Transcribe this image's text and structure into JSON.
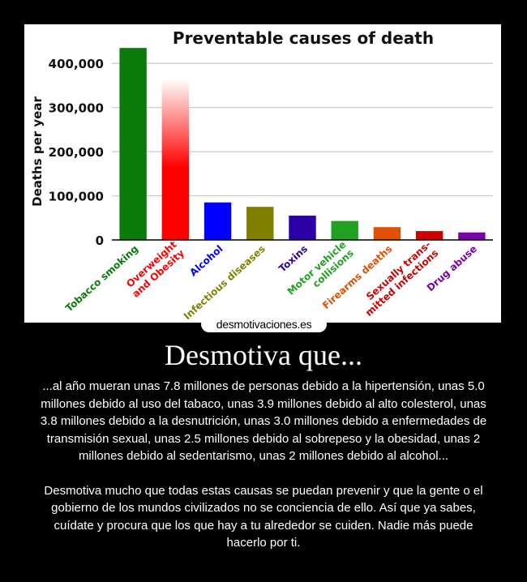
{
  "chart_data": {
    "type": "bar",
    "title": "Preventable causes of death",
    "ylabel": "Deaths per year",
    "xlabel": "",
    "ylim": [
      0,
      450000
    ],
    "yticks": [
      0,
      100000,
      200000,
      300000,
      400000
    ],
    "ytick_labels": [
      "0",
      "100,000",
      "200,000",
      "300,000",
      "400,000"
    ],
    "grid": true,
    "categories": [
      "Tobacco smoking",
      "Overweight and Obesity",
      "Alcohol",
      "Infectious diseases",
      "Toxins",
      "Motor vehicle collisions",
      "Firearms deaths",
      "Sexually transmitted infections",
      "Drug abuse"
    ],
    "category_lines": [
      [
        "Tobacco smoking"
      ],
      [
        "Overweight",
        "and Obesity"
      ],
      [
        "Alcohol"
      ],
      [
        "Infectious diseases"
      ],
      [
        "Toxins"
      ],
      [
        "Motor vehicle",
        "collisions"
      ],
      [
        "Firearms deaths"
      ],
      [
        "Sexually trans-",
        "mitted infections"
      ],
      [
        "Drug abuse"
      ]
    ],
    "values": [
      435000,
      365000,
      85000,
      75000,
      55000,
      43000,
      29000,
      20000,
      17000
    ],
    "colors": [
      "#0a7a0a",
      "#ff0000",
      "#0000ff",
      "#808000",
      "#2a00a6",
      "#22a022",
      "#e05000",
      "#d00000",
      "#7a00aa"
    ]
  },
  "watermark": "desmotivaciones.es",
  "motto": {
    "title": "Desmotiva que...",
    "paragraph1": "...al año mueran unas 7.8 millones de personas debido a la hipertensión, unas 5.0 millones debido al uso del tabaco, unas 3.9 millones debido al alto colesterol, unas 3.8 millones debido a la desnutrición, unas 3.0 millones debido a enfermedades de transmisión sexual, unas 2.5 millones debido al sobrepeso y la obesidad, unas 2 millones debido al sedentarismo, unas 2 millones debido al alcohol...",
    "paragraph2": "Desmotiva mucho que todas estas causas se puedan prevenir y que la gente o el gobierno de los mundos civilizados no se conciencia de ello. Así que ya sabes, cuídate y procura que los que hay a tu alrededor se cuiden. Nadie más puede hacerlo por ti."
  }
}
